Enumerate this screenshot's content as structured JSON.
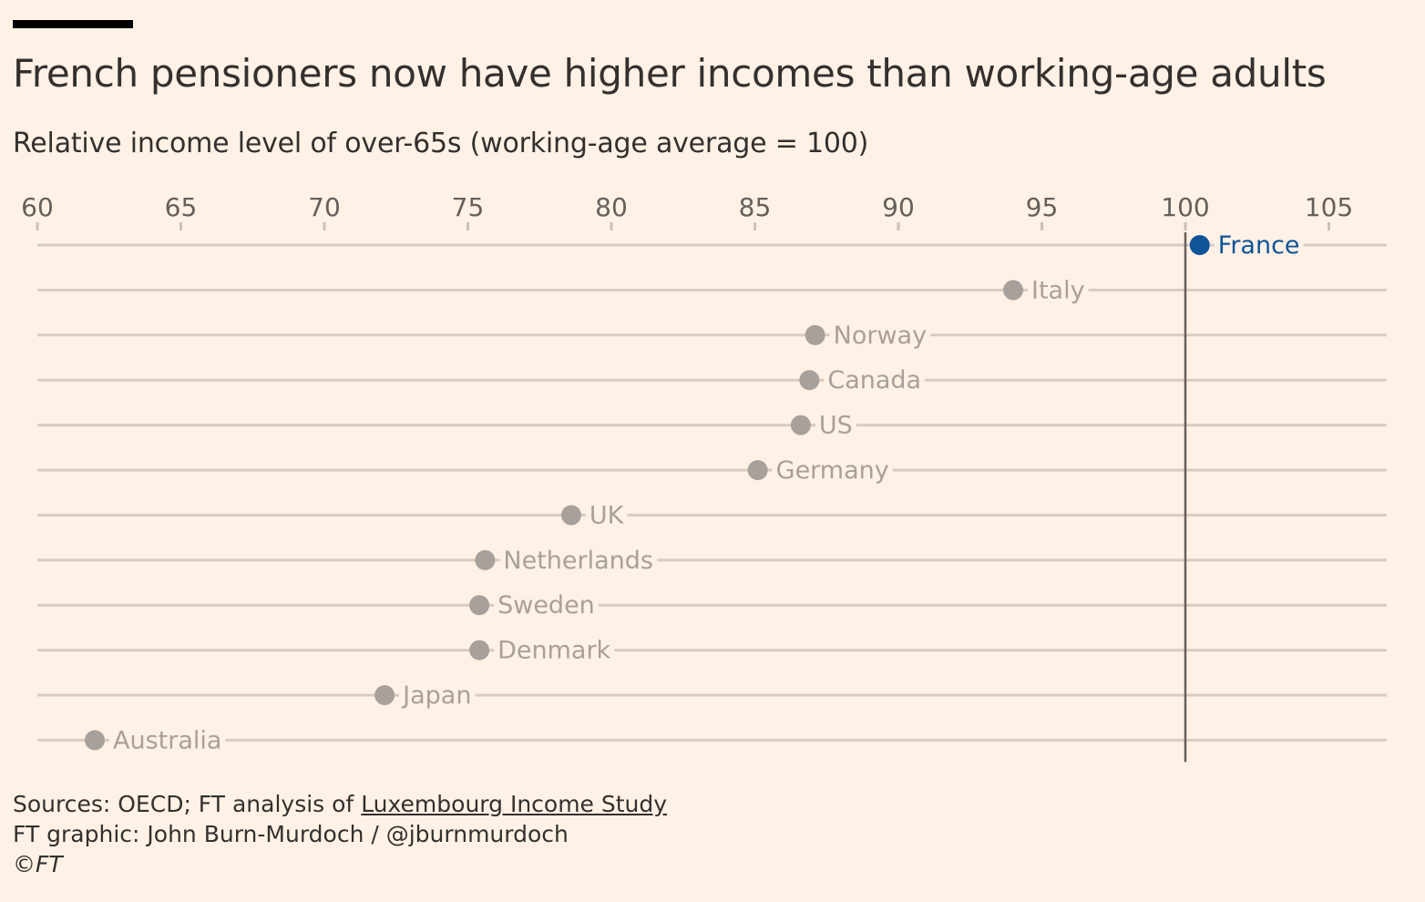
{
  "title": "French pensioners now have higher incomes than working-age adults",
  "subtitle": "Relative income level of over-65s (working-age average = 100)",
  "footer": {
    "sources_prefix": "Sources: OECD; FT analysis of ",
    "sources_link": "Luxembourg Income Study",
    "credit": "FT graphic: John Burn-Murdoch / @jburnmurdoch",
    "copyright": "©FT"
  },
  "colors": {
    "background": "#fff1e5",
    "highlight": "#0f5499",
    "dot": "#a8a09a",
    "line": "#d7ccc1",
    "reference_line": "#66605c"
  },
  "chart_data": {
    "type": "scatter",
    "title": "French pensioners now have higher incomes than working-age adults",
    "subtitle": "Relative income level of over-65s (working-age average = 100)",
    "xlim": [
      60,
      107
    ],
    "x_ticks": [
      60,
      65,
      70,
      75,
      80,
      85,
      90,
      95,
      100,
      105
    ],
    "reference_line": 100,
    "grid": true,
    "categories": [
      "France",
      "Italy",
      "Norway",
      "Canada",
      "US",
      "Germany",
      "UK",
      "Netherlands",
      "Sweden",
      "Denmark",
      "Japan",
      "Australia"
    ],
    "values": [
      100.5,
      94,
      87.1,
      86.9,
      86.6,
      85.1,
      78.6,
      75.6,
      75.4,
      75.4,
      72.1,
      62
    ]
  }
}
